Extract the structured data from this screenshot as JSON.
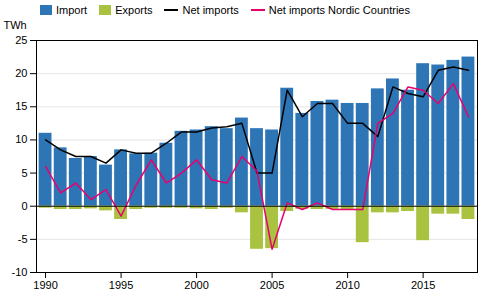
{
  "chart_data": {
    "type": "bar",
    "x": [
      1990,
      1991,
      1992,
      1993,
      1994,
      1995,
      1996,
      1997,
      1998,
      1999,
      2000,
      2001,
      2002,
      2003,
      2004,
      2005,
      2006,
      2007,
      2008,
      2009,
      2010,
      2011,
      2012,
      2013,
      2014,
      2015,
      2016,
      2017,
      2018
    ],
    "series": [
      {
        "name": "Import",
        "type": "bar",
        "color": "#2e75b6",
        "values": [
          11.0,
          8.8,
          7.2,
          7.5,
          6.2,
          8.5,
          7.9,
          8.0,
          9.5,
          11.3,
          11.5,
          12.0,
          11.7,
          13.3,
          11.7,
          11.5,
          17.8,
          14.0,
          15.8,
          16.0,
          15.5,
          15.5,
          17.7,
          19.2,
          17.5,
          21.5,
          21.3,
          22.0,
          22.5
        ]
      },
      {
        "name": "Exports",
        "type": "bar",
        "color": "#a9c23f",
        "values": [
          -0.3,
          -0.5,
          -0.5,
          -0.4,
          -0.7,
          -2.0,
          -0.5,
          -0.3,
          -0.3,
          -0.3,
          -0.4,
          -0.5,
          -0.3,
          -1.0,
          -6.5,
          -6.4,
          -0.8,
          -0.5,
          -0.5,
          -0.5,
          -0.5,
          -5.5,
          -1.0,
          -1.0,
          -0.8,
          -5.2,
          -1.2,
          -1.2,
          -2.0
        ]
      },
      {
        "name": "Net imports",
        "type": "line",
        "color": "#000000",
        "values": [
          10.0,
          8.5,
          7.5,
          7.5,
          6.5,
          8.5,
          8.0,
          8.0,
          9.5,
          11.2,
          11.2,
          11.8,
          12.0,
          12.5,
          5.0,
          5.0,
          17.5,
          13.5,
          15.5,
          15.5,
          12.5,
          12.5,
          10.5,
          18.0,
          17.0,
          16.5,
          20.5,
          21.0,
          20.5
        ]
      },
      {
        "name": "Net imports Nordic Countries",
        "type": "line",
        "color": "#e8006e",
        "values": [
          6.0,
          2.0,
          3.5,
          1.0,
          2.5,
          -1.5,
          3.2,
          7.0,
          3.5,
          5.0,
          7.0,
          4.0,
          3.5,
          7.5,
          5.3,
          -6.5,
          0.5,
          -0.5,
          0.5,
          -0.5,
          -0.5,
          -0.5,
          12.5,
          14.0,
          18.0,
          17.5,
          15.5,
          18.5,
          13.5
        ]
      }
    ],
    "ylabel": "TWh",
    "xlim": [
      1989.4,
      2018.6
    ],
    "xticks": [
      1990,
      1995,
      2000,
      2005,
      2010,
      2015
    ],
    "ylim": [
      -10,
      25
    ],
    "yticks": [
      -10,
      -5,
      0,
      5,
      10,
      15,
      20,
      25
    ],
    "grid": true,
    "legend": "upper left"
  }
}
